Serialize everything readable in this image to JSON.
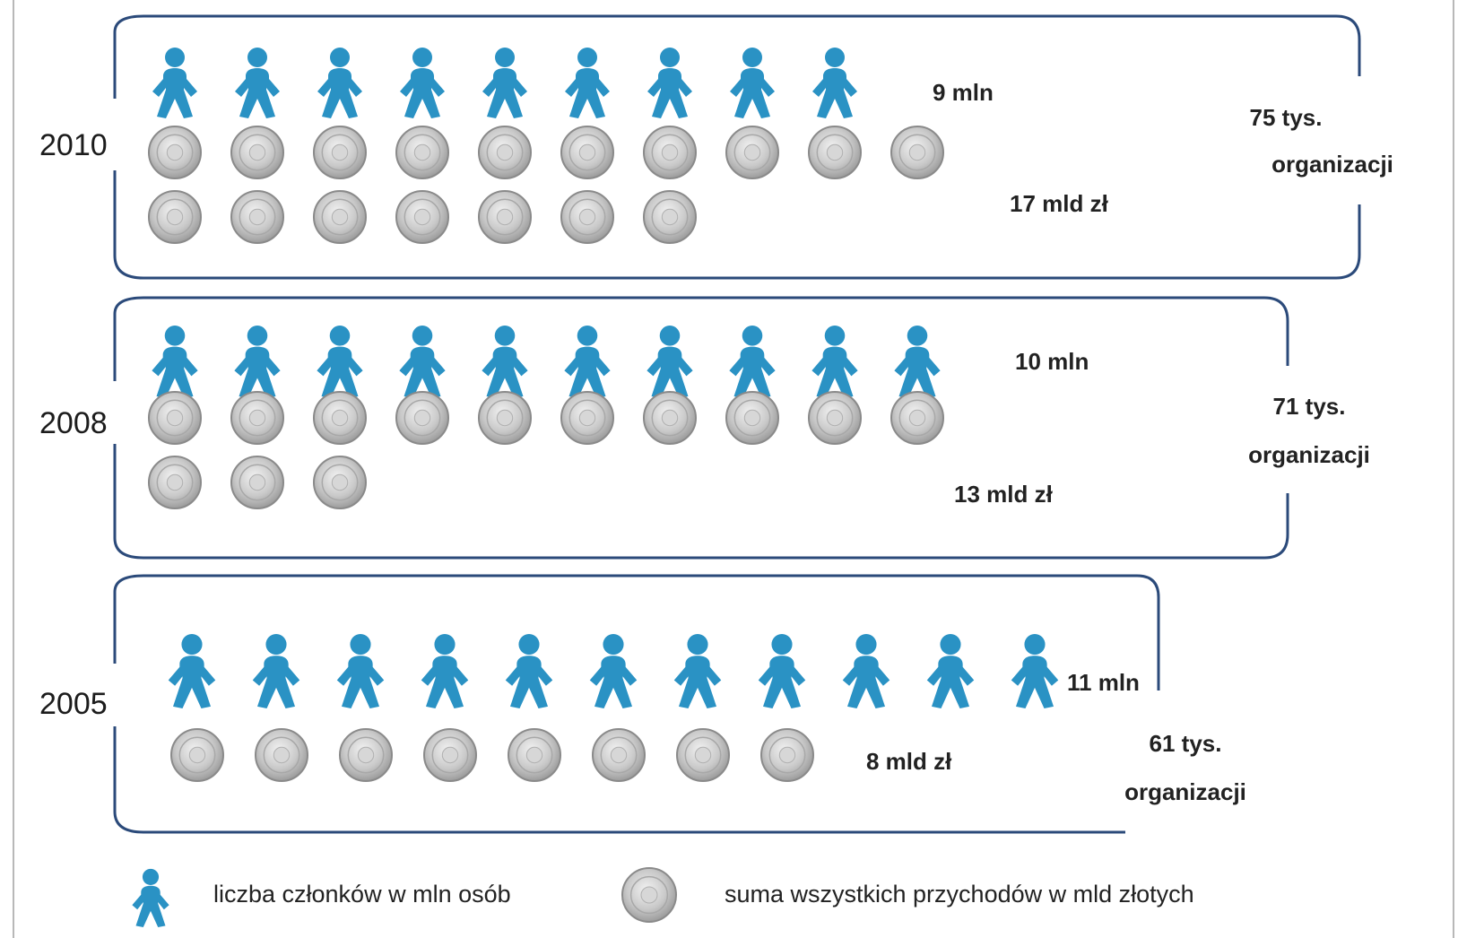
{
  "chart_data": {
    "type": "pictogram",
    "rows": [
      {
        "year": "2010",
        "members_mln": 9,
        "members_label": "9 mln",
        "revenue_bln_zl": 17,
        "revenue_label": "17 mld zł",
        "organizations_label_line1": "75 tys.",
        "organizations_label_line2": "organizacji",
        "organizations_thousands": 75
      },
      {
        "year": "2008",
        "members_mln": 10,
        "members_label": "10 mln",
        "revenue_bln_zl": 13,
        "revenue_label": "13 mld zł",
        "organizations_label_line1": "71 tys.",
        "organizations_label_line2": "organizacji",
        "organizations_thousands": 71
      },
      {
        "year": "2005",
        "members_mln": 11,
        "members_label": "11 mln",
        "revenue_bln_zl": 8,
        "revenue_label": "8 mld zł",
        "organizations_label_line1": "61 tys.",
        "organizations_label_line2": "organizacji",
        "organizations_thousands": 61
      }
    ],
    "legend": [
      {
        "icon": "person-icon",
        "label": "liczba członków w mln osób"
      },
      {
        "icon": "coin-icon",
        "label": "suma wszystkich przychodów w mld złotych"
      }
    ],
    "colors": {
      "person": "#2a92c4",
      "coin": "#c9c9c9",
      "box_border": "#2b4a7a"
    }
  }
}
